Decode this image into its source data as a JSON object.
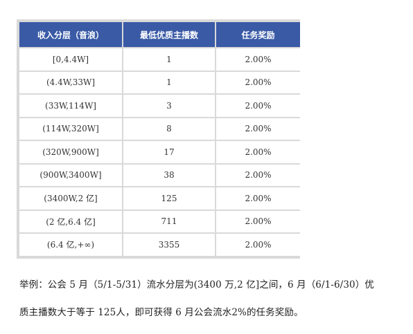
{
  "colors": {
    "header_bg": "#3a5aa6",
    "header_text": "#ffffff",
    "grid": "#d9d9d9"
  },
  "table": {
    "headers": [
      "收入分层（音浪）",
      "最低优质主播数",
      "任务奖励"
    ],
    "rows": [
      [
        "[0,4.4W]",
        "1",
        "2.00%"
      ],
      [
        "(4.4W,33W]",
        "1",
        "2.00%"
      ],
      [
        "(33W,114W]",
        "3",
        "2.00%"
      ],
      [
        "(114W,320W]",
        "8",
        "2.00%"
      ],
      [
        "(320W,900W]",
        "17",
        "2.00%"
      ],
      [
        "(900W,3400W]",
        "38",
        "2.00%"
      ],
      [
        "(3400W,2 亿]",
        "125",
        "2.00%"
      ],
      [
        "(2 亿,6.4 亿]",
        "711",
        "2.00%"
      ],
      [
        "(6.4 亿,+∞)",
        "3355",
        "2.00%"
      ]
    ]
  },
  "note": {
    "line1": "举例：公会 5 月（5/1-5/31）流水分层为(3400 万,2 亿]之间，6 月（6/1-6/30）优",
    "line2": "质主播数大于等于 125人，即可获得 6 月公会流水2%的任务奖励。"
  }
}
